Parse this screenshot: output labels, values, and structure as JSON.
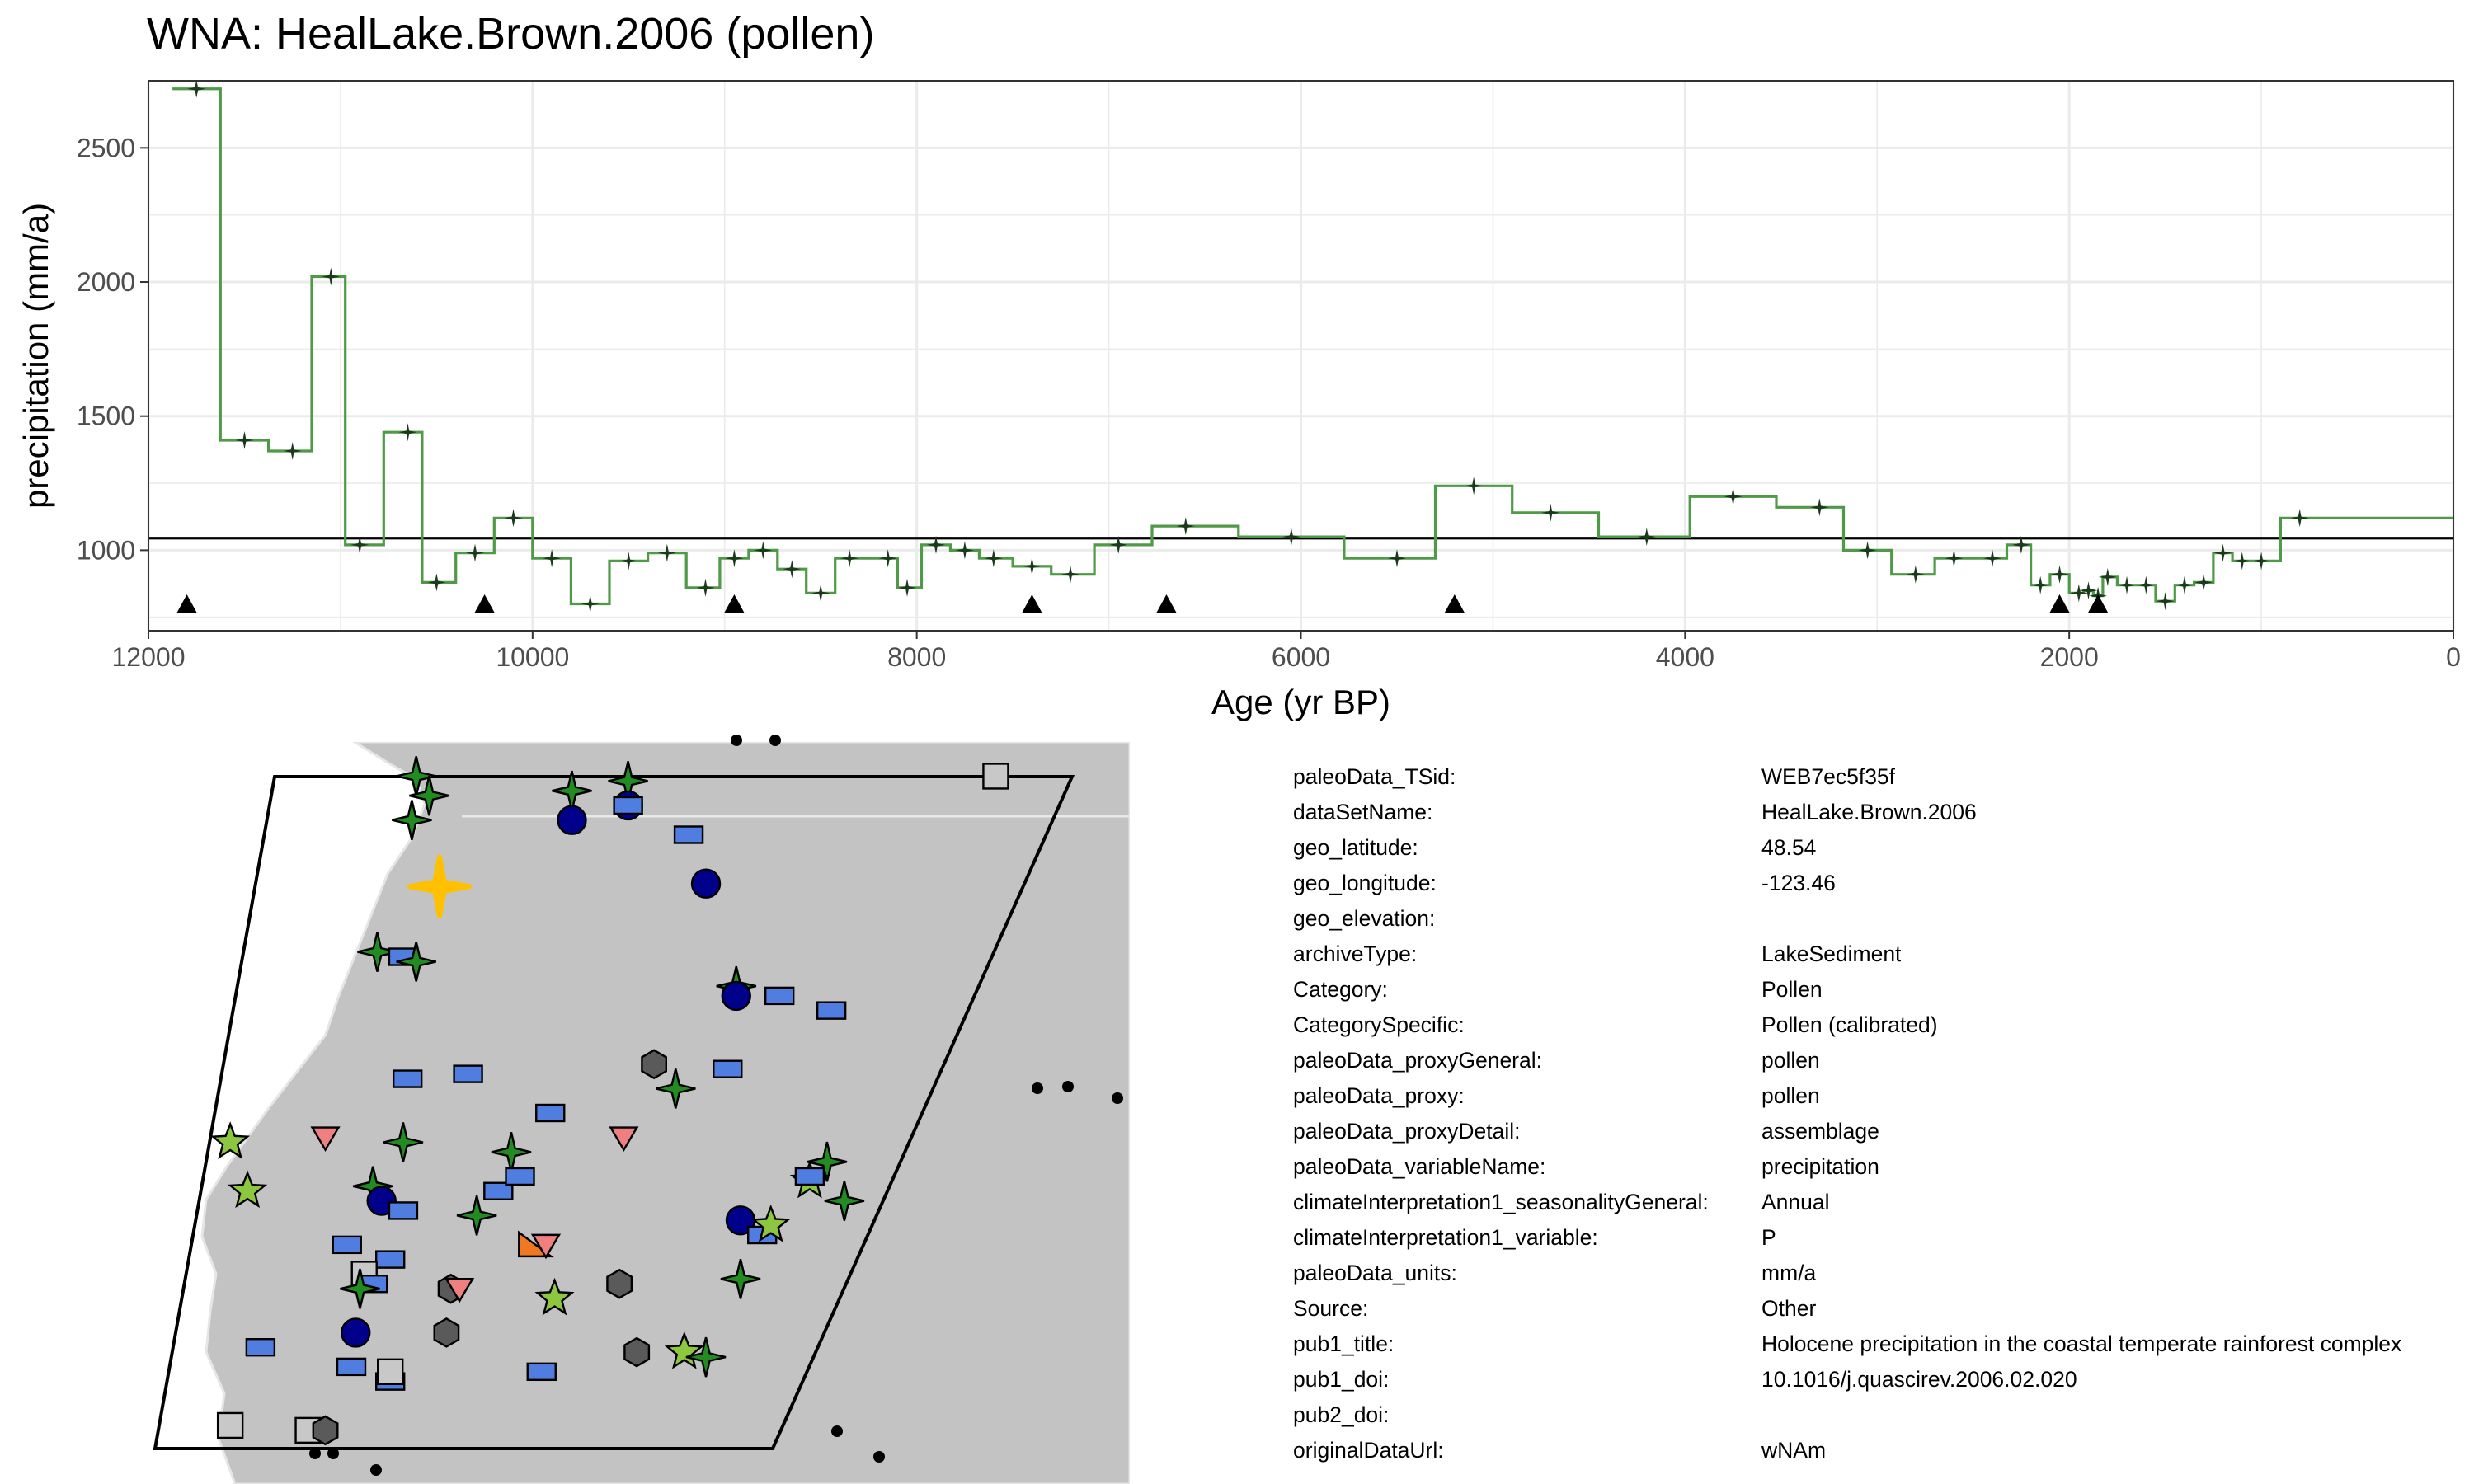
{
  "title": "WNA: HealLake.Brown.2006 (pollen)",
  "chart_data": {
    "type": "line",
    "title": "WNA: HealLake.Brown.2006 (pollen)",
    "xlabel": "Age (yr BP)",
    "ylabel": "precipitation (mm/a)",
    "xlim": [
      12000,
      0
    ],
    "ylim": [
      700,
      2750
    ],
    "x_reversed": true,
    "xticks": [
      12000,
      10000,
      8000,
      6000,
      4000,
      2000,
      0
    ],
    "yticks": [
      1000,
      1500,
      2000,
      2500
    ],
    "grid": true,
    "legend": "none",
    "line_style": "step",
    "line_color": "#4e9a47",
    "marker_color": "#1b3a1b",
    "reference_line_y": 1045,
    "series": [
      {
        "x": [
          11750,
          11500,
          11250,
          11050,
          10900,
          10650,
          10500,
          10300,
          10100,
          9900,
          9700,
          9500,
          9300,
          9100,
          8950,
          8800,
          8650,
          8500,
          8350,
          8150,
          8050,
          7900,
          7750,
          7600,
          7400,
          7200,
          6950,
          6600,
          6050,
          5500,
          5100,
          4700,
          4200,
          3750,
          3300,
          3050,
          2800,
          2600,
          2400,
          2250,
          2150,
          2050,
          1950,
          1900,
          1850,
          1800,
          1700,
          1600,
          1500,
          1400,
          1300,
          1200,
          1100,
          1000,
          800
        ],
        "y": [
          2720,
          1410,
          1370,
          2020,
          1020,
          1440,
          880,
          990,
          1120,
          970,
          800,
          960,
          990,
          860,
          970,
          1000,
          930,
          840,
          970,
          970,
          860,
          1020,
          1000,
          970,
          940,
          910,
          1020,
          1090,
          1050,
          970,
          1240,
          1140,
          1050,
          1200,
          1160,
          1000,
          910,
          970,
          970,
          1020,
          870,
          910,
          840,
          850,
          830,
          900,
          870,
          870,
          810,
          870,
          880,
          990,
          960,
          960,
          1120
        ]
      }
    ],
    "age_control_points": [
      11800,
      10250,
      8950,
      7400,
      6700,
      5200,
      2050,
      1850
    ]
  },
  "metadata": [
    {
      "key": "paleoData_TSid:",
      "value": "WEB7ec5f35f"
    },
    {
      "key": "dataSetName:",
      "value": "HealLake.Brown.2006"
    },
    {
      "key": "geo_latitude:",
      "value": "48.54"
    },
    {
      "key": "geo_longitude:",
      "value": "-123.46"
    },
    {
      "key": "geo_elevation:",
      "value": ""
    },
    {
      "key": "archiveType:",
      "value": "LakeSediment"
    },
    {
      "key": "Category:",
      "value": "Pollen"
    },
    {
      "key": "CategorySpecific:",
      "value": "Pollen (calibrated)"
    },
    {
      "key": "paleoData_proxyGeneral:",
      "value": "pollen"
    },
    {
      "key": "paleoData_proxy:",
      "value": "pollen"
    },
    {
      "key": "paleoData_proxyDetail:",
      "value": "assemblage"
    },
    {
      "key": "paleoData_variableName:",
      "value": "precipitation"
    },
    {
      "key": "climateInterpretation1_seasonalityGeneral:",
      "value": "Annual"
    },
    {
      "key": "climateInterpretation1_variable:",
      "value": "P"
    },
    {
      "key": "paleoData_units:",
      "value": "mm/a"
    },
    {
      "key": "Source:",
      "value": "Other"
    },
    {
      "key": "pub1_title:",
      "value": "Holocene precipitation in the coastal temperate rainforest complex"
    },
    {
      "key": "pub1_doi:",
      "value": "10.1016/j.quascirev.2006.02.020"
    },
    {
      "key": "pub2_doi:",
      "value": ""
    },
    {
      "key": "originalDataUrl:",
      "value": "wNAm"
    }
  ],
  "map": {
    "land_color": "#c3c3c3",
    "sites": [
      {
        "type": "star4",
        "color": "#228b22",
        "lon": -124.0,
        "lat": 50.8
      },
      {
        "type": "star4",
        "color": "#228b22",
        "lon": -123.7,
        "lat": 50.4
      },
      {
        "type": "star4",
        "color": "#228b22",
        "lon": -124.1,
        "lat": 49.9
      },
      {
        "type": "star4",
        "color": "#228b22",
        "lon": -120.4,
        "lat": 50.5
      },
      {
        "type": "star4",
        "color": "#228b22",
        "lon": -119.1,
        "lat": 50.7
      },
      {
        "type": "circle",
        "color": "#00008b",
        "lon": -120.4,
        "lat": 49.9
      },
      {
        "type": "circle",
        "color": "#00008b",
        "lon": -119.1,
        "lat": 50.2
      },
      {
        "type": "rect",
        "color": "#4f7de0",
        "lon": -119.1,
        "lat": 50.2
      },
      {
        "type": "rect",
        "color": "#4f7de0",
        "lon": -117.7,
        "lat": 49.6
      },
      {
        "type": "circle",
        "color": "#00008b",
        "lon": -117.3,
        "lat": 48.6
      },
      {
        "type": "star4",
        "color": "#228b22",
        "lon": -124.9,
        "lat": 47.2
      },
      {
        "type": "rect",
        "color": "#4f7de0",
        "lon": -124.3,
        "lat": 47.1
      },
      {
        "type": "star4",
        "color": "#228b22",
        "lon": -124.0,
        "lat": 47.0
      },
      {
        "type": "star4",
        "color": "#228b22",
        "lon": -116.6,
        "lat": 46.5
      },
      {
        "type": "circle",
        "color": "#00008b",
        "lon": -116.6,
        "lat": 46.3
      },
      {
        "type": "rect",
        "color": "#4f7de0",
        "lon": -115.6,
        "lat": 46.3
      },
      {
        "type": "rect",
        "color": "#4f7de0",
        "lon": -114.4,
        "lat": 46.0
      },
      {
        "type": "hexagon",
        "color": "#5a5a5a",
        "lon": -118.5,
        "lat": 44.9
      },
      {
        "type": "rect",
        "color": "#4f7de0",
        "lon": -116.8,
        "lat": 44.8
      },
      {
        "type": "star4",
        "color": "#228b22",
        "lon": -118.0,
        "lat": 44.4
      },
      {
        "type": "rect",
        "color": "#4f7de0",
        "lon": -124.2,
        "lat": 44.6
      },
      {
        "type": "rect",
        "color": "#4f7de0",
        "lon": -122.8,
        "lat": 44.7
      },
      {
        "type": "rect",
        "color": "#4f7de0",
        "lon": -120.9,
        "lat": 43.9
      },
      {
        "type": "star5",
        "color": "#8dc63f",
        "lon": -128.3,
        "lat": 43.3
      },
      {
        "type": "triangle-down",
        "color": "#f08080",
        "lon": -126.1,
        "lat": 43.4
      },
      {
        "type": "star4",
        "color": "#228b22",
        "lon": -124.3,
        "lat": 43.3
      },
      {
        "type": "star4",
        "color": "#228b22",
        "lon": -121.8,
        "lat": 43.1
      },
      {
        "type": "triangle-down",
        "color": "#f08080",
        "lon": -119.2,
        "lat": 43.4
      },
      {
        "type": "star4",
        "color": "#228b22",
        "lon": -114.5,
        "lat": 42.9
      },
      {
        "type": "star5",
        "color": "#8dc63f",
        "lon": -127.9,
        "lat": 42.3
      },
      {
        "type": "star4",
        "color": "#228b22",
        "lon": -125.0,
        "lat": 42.4
      },
      {
        "type": "circle",
        "color": "#00008b",
        "lon": -124.8,
        "lat": 42.1
      },
      {
        "type": "rect",
        "color": "#4f7de0",
        "lon": -124.3,
        "lat": 41.9
      },
      {
        "type": "rect",
        "color": "#4f7de0",
        "lon": -122.1,
        "lat": 42.3
      },
      {
        "type": "rect",
        "color": "#4f7de0",
        "lon": -121.6,
        "lat": 42.6
      },
      {
        "type": "star4",
        "color": "#228b22",
        "lon": -122.6,
        "lat": 41.8
      },
      {
        "type": "star5",
        "color": "#8dc63f",
        "lon": -114.9,
        "lat": 42.5
      },
      {
        "type": "rect",
        "color": "#4f7de0",
        "lon": -114.9,
        "lat": 42.6
      },
      {
        "type": "star4",
        "color": "#228b22",
        "lon": -114.1,
        "lat": 42.1
      },
      {
        "type": "circle",
        "color": "#00008b",
        "lon": -116.5,
        "lat": 41.7
      },
      {
        "type": "rect",
        "color": "#4f7de0",
        "lon": -116.0,
        "lat": 41.4
      },
      {
        "type": "star5",
        "color": "#8dc63f",
        "lon": -115.8,
        "lat": 41.6
      },
      {
        "type": "rect",
        "color": "#4f7de0",
        "lon": -125.6,
        "lat": 41.2
      },
      {
        "type": "rect",
        "color": "#4f7de0",
        "lon": -124.6,
        "lat": 40.9
      },
      {
        "type": "triangle-right",
        "color": "#f07820",
        "lon": -121.3,
        "lat": 41.2
      },
      {
        "type": "triangle-down",
        "color": "#f08080",
        "lon": -121.0,
        "lat": 41.2
      },
      {
        "type": "square",
        "color": "#c8c8c8",
        "lon": -125.2,
        "lat": 40.6
      },
      {
        "type": "rect",
        "color": "#4f7de0",
        "lon": -125.0,
        "lat": 40.4
      },
      {
        "type": "star4",
        "color": "#228b22",
        "lon": -125.3,
        "lat": 40.3
      },
      {
        "type": "hexagon",
        "color": "#5a5a5a",
        "lon": -123.2,
        "lat": 40.3
      },
      {
        "type": "triangle-down",
        "color": "#f08080",
        "lon": -123.0,
        "lat": 40.3
      },
      {
        "type": "star5",
        "color": "#8dc63f",
        "lon": -120.8,
        "lat": 40.1
      },
      {
        "type": "hexagon",
        "color": "#5a5a5a",
        "lon": -119.3,
        "lat": 40.4
      },
      {
        "type": "star4",
        "color": "#228b22",
        "lon": -116.5,
        "lat": 40.5
      },
      {
        "type": "circle",
        "color": "#00008b",
        "lon": -125.4,
        "lat": 39.4
      },
      {
        "type": "hexagon",
        "color": "#5a5a5a",
        "lon": -123.3,
        "lat": 39.4
      },
      {
        "type": "rect",
        "color": "#4f7de0",
        "lon": -127.6,
        "lat": 39.1
      },
      {
        "type": "hexagon",
        "color": "#5a5a5a",
        "lon": -118.9,
        "lat": 39.0
      },
      {
        "type": "star5",
        "color": "#8dc63f",
        "lon": -117.8,
        "lat": 39.0
      },
      {
        "type": "star4",
        "color": "#228b22",
        "lon": -117.3,
        "lat": 38.9
      },
      {
        "type": "rect",
        "color": "#4f7de0",
        "lon": -125.5,
        "lat": 38.7
      },
      {
        "type": "rect",
        "color": "#4f7de0",
        "lon": -124.6,
        "lat": 38.4
      },
      {
        "type": "square",
        "color": "#c8c8c8",
        "lon": -124.6,
        "lat": 38.6
      },
      {
        "type": "rect",
        "color": "#4f7de0",
        "lon": -121.1,
        "lat": 38.6
      },
      {
        "type": "square",
        "color": "#c8c8c8",
        "lon": -128.3,
        "lat": 37.5
      },
      {
        "type": "square",
        "color": "#c8c8c8",
        "lon": -126.5,
        "lat": 37.4
      },
      {
        "type": "hexagon",
        "color": "#5a5a5a",
        "lon": -126.1,
        "lat": 37.4
      },
      {
        "type": "square",
        "color": "#c8c8c8",
        "lon": -110.6,
        "lat": 50.8
      }
    ],
    "highlight": {
      "type": "star4",
      "color": "#ffc000",
      "lon": -123.46,
      "lat": 48.54
    }
  }
}
